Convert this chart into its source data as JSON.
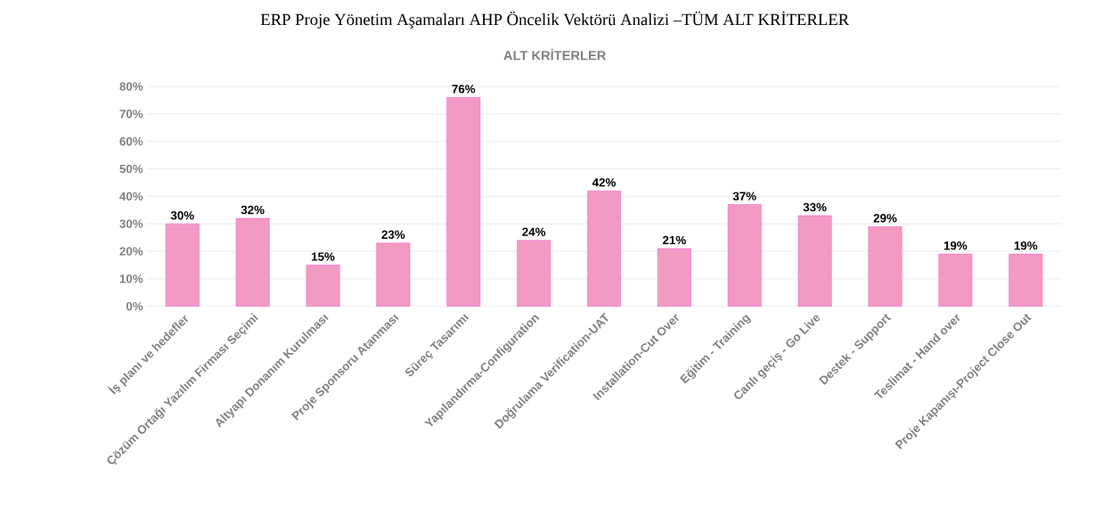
{
  "chart_data": {
    "type": "bar",
    "title": "ERP Proje Yönetim Aşamaları AHP Öncelik Vektörü Analizi –TÜM ALT KRİTERLER",
    "subtitle": "ALT KRİTERLER",
    "categories": [
      "İş planı ve hedefler",
      "Çözüm Ortağı Yazılım Firması Seçimi",
      "Altyapı Donanım Kurulması",
      "Proje Sponsoru Atanması",
      "Süreç Tasarımı",
      "Yapılandırma-Configuration",
      "Doğrulama Verification-UAT",
      "Installation-Cut Over",
      "Eğitim - Training",
      "Canlı geçiş -    Go Live",
      "Destek - Support",
      "Teslimat -   Hand over",
      "Proje Kapanışı-Project Close Out"
    ],
    "values": [
      30,
      32,
      15,
      23,
      76,
      24,
      42,
      21,
      37,
      33,
      29,
      19,
      19
    ],
    "value_labels": [
      "30%",
      "32%",
      "15%",
      "23%",
      "76%",
      "24%",
      "42%",
      "21%",
      "37%",
      "33%",
      "29%",
      "19%",
      "19%"
    ],
    "color": "#f29ac2",
    "ylim": [
      0,
      80
    ],
    "yticks": [
      {
        "value": 0,
        "label": "0%"
      },
      {
        "value": 10,
        "label": "10%"
      },
      {
        "value": 20,
        "label": "20%"
      },
      {
        "value": 30,
        "label": "30%"
      },
      {
        "value": 40,
        "label": "40%"
      },
      {
        "value": 50,
        "label": "50%"
      },
      {
        "value": 60,
        "label": "60%"
      },
      {
        "value": 70,
        "label": "70%"
      },
      {
        "value": 80,
        "label": "80%"
      }
    ],
    "grid": "y"
  }
}
